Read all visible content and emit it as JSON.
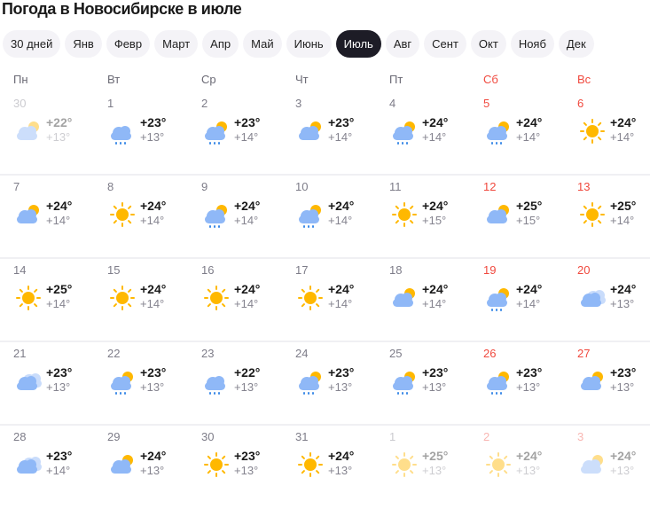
{
  "title": "Погода в Новосибирске в июле",
  "tabs": [
    {
      "label": "30 дней",
      "active": false
    },
    {
      "label": "Янв",
      "active": false
    },
    {
      "label": "Февр",
      "active": false
    },
    {
      "label": "Март",
      "active": false
    },
    {
      "label": "Апр",
      "active": false
    },
    {
      "label": "Май",
      "active": false
    },
    {
      "label": "Июнь",
      "active": false
    },
    {
      "label": "Июль",
      "active": true
    },
    {
      "label": "Авг",
      "active": false
    },
    {
      "label": "Сент",
      "active": false
    },
    {
      "label": "Окт",
      "active": false
    },
    {
      "label": "Нояб",
      "active": false
    },
    {
      "label": "Дек",
      "active": false
    }
  ],
  "weekdays": [
    {
      "label": "Пн",
      "weekend": false
    },
    {
      "label": "Вт",
      "weekend": false
    },
    {
      "label": "Ср",
      "weekend": false
    },
    {
      "label": "Чт",
      "weekend": false
    },
    {
      "label": "Пт",
      "weekend": false
    },
    {
      "label": "Сб",
      "weekend": true
    },
    {
      "label": "Вс",
      "weekend": true
    }
  ],
  "colors": {
    "weekend": "#f0493e",
    "active_tab": "#1d1c26",
    "sun": "#ffb800",
    "cloud": "#8fb8f7",
    "rain": "#3d8be8"
  },
  "weeks": [
    [
      {
        "date": "30",
        "hi": "+22°",
        "lo": "+13°",
        "icon": "partly-cloudy",
        "faded": true
      },
      {
        "date": "1",
        "hi": "+23°",
        "lo": "+13°",
        "icon": "rain"
      },
      {
        "date": "2",
        "hi": "+23°",
        "lo": "+14°",
        "icon": "partly-cloudy-rain"
      },
      {
        "date": "3",
        "hi": "+23°",
        "lo": "+14°",
        "icon": "partly-cloudy"
      },
      {
        "date": "4",
        "hi": "+24°",
        "lo": "+14°",
        "icon": "partly-cloudy-rain"
      },
      {
        "date": "5",
        "hi": "+24°",
        "lo": "+14°",
        "icon": "partly-cloudy-rain"
      },
      {
        "date": "6",
        "hi": "+24°",
        "lo": "+14°",
        "icon": "sun"
      }
    ],
    [
      {
        "date": "7",
        "hi": "+24°",
        "lo": "+14°",
        "icon": "partly-cloudy"
      },
      {
        "date": "8",
        "hi": "+24°",
        "lo": "+14°",
        "icon": "sun"
      },
      {
        "date": "9",
        "hi": "+24°",
        "lo": "+14°",
        "icon": "partly-cloudy-rain"
      },
      {
        "date": "10",
        "hi": "+24°",
        "lo": "+14°",
        "icon": "partly-cloudy-rain"
      },
      {
        "date": "11",
        "hi": "+24°",
        "lo": "+15°",
        "icon": "sun"
      },
      {
        "date": "12",
        "hi": "+25°",
        "lo": "+15°",
        "icon": "partly-cloudy"
      },
      {
        "date": "13",
        "hi": "+25°",
        "lo": "+14°",
        "icon": "sun"
      }
    ],
    [
      {
        "date": "14",
        "hi": "+25°",
        "lo": "+14°",
        "icon": "sun"
      },
      {
        "date": "15",
        "hi": "+24°",
        "lo": "+14°",
        "icon": "sun"
      },
      {
        "date": "16",
        "hi": "+24°",
        "lo": "+14°",
        "icon": "sun"
      },
      {
        "date": "17",
        "hi": "+24°",
        "lo": "+14°",
        "icon": "sun"
      },
      {
        "date": "18",
        "hi": "+24°",
        "lo": "+14°",
        "icon": "partly-cloudy"
      },
      {
        "date": "19",
        "hi": "+24°",
        "lo": "+14°",
        "icon": "partly-cloudy-rain"
      },
      {
        "date": "20",
        "hi": "+24°",
        "lo": "+13°",
        "icon": "cloudy"
      }
    ],
    [
      {
        "date": "21",
        "hi": "+23°",
        "lo": "+13°",
        "icon": "cloudy"
      },
      {
        "date": "22",
        "hi": "+23°",
        "lo": "+13°",
        "icon": "partly-cloudy-rain"
      },
      {
        "date": "23",
        "hi": "+22°",
        "lo": "+13°",
        "icon": "rain"
      },
      {
        "date": "24",
        "hi": "+23°",
        "lo": "+13°",
        "icon": "partly-cloudy-rain"
      },
      {
        "date": "25",
        "hi": "+23°",
        "lo": "+13°",
        "icon": "partly-cloudy-rain"
      },
      {
        "date": "26",
        "hi": "+23°",
        "lo": "+13°",
        "icon": "partly-cloudy-rain"
      },
      {
        "date": "27",
        "hi": "+23°",
        "lo": "+13°",
        "icon": "partly-cloudy"
      }
    ],
    [
      {
        "date": "28",
        "hi": "+23°",
        "lo": "+14°",
        "icon": "cloudy"
      },
      {
        "date": "29",
        "hi": "+24°",
        "lo": "+13°",
        "icon": "partly-cloudy"
      },
      {
        "date": "30",
        "hi": "+23°",
        "lo": "+13°",
        "icon": "sun"
      },
      {
        "date": "31",
        "hi": "+24°",
        "lo": "+13°",
        "icon": "sun"
      },
      {
        "date": "1",
        "hi": "+25°",
        "lo": "+13°",
        "icon": "sun",
        "faded": true
      },
      {
        "date": "2",
        "hi": "+24°",
        "lo": "+13°",
        "icon": "sun",
        "faded": true
      },
      {
        "date": "3",
        "hi": "+24°",
        "lo": "+13°",
        "icon": "partly-cloudy",
        "faded": true
      }
    ]
  ]
}
